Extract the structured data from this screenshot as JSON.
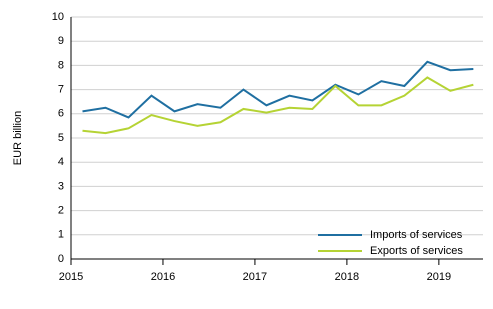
{
  "chart_data": {
    "type": "line",
    "y_label": "EUR billion",
    "x": [
      2015.125,
      2015.375,
      2015.625,
      2015.875,
      2016.125,
      2016.375,
      2016.625,
      2016.875,
      2017.125,
      2017.375,
      2017.625,
      2017.875,
      2018.125,
      2018.375,
      2018.625,
      2018.875,
      2019.125,
      2019.375
    ],
    "series": [
      {
        "name": "Imports of services",
        "color": "#1f6fa1",
        "values": [
          6.1,
          6.25,
          5.85,
          6.75,
          6.1,
          6.4,
          6.25,
          7.0,
          6.35,
          6.75,
          6.55,
          7.2,
          6.8,
          7.35,
          7.15,
          8.15,
          7.8,
          7.85
        ]
      },
      {
        "name": "Exports of services",
        "color": "#b5d334",
        "values": [
          5.3,
          5.2,
          5.4,
          5.95,
          5.7,
          5.5,
          5.65,
          6.2,
          6.05,
          6.25,
          6.2,
          7.15,
          6.35,
          6.35,
          6.75,
          7.5,
          6.95,
          7.2
        ]
      }
    ],
    "xlim": [
      2015,
      2019.48
    ],
    "xticks": [
      2015,
      2016,
      2017,
      2018,
      2019
    ],
    "ylim": [
      0,
      10
    ],
    "yticks": [
      0,
      1,
      2,
      3,
      4,
      5,
      6,
      7,
      8,
      9,
      10
    ],
    "grid": true,
    "legend": "lower right"
  }
}
